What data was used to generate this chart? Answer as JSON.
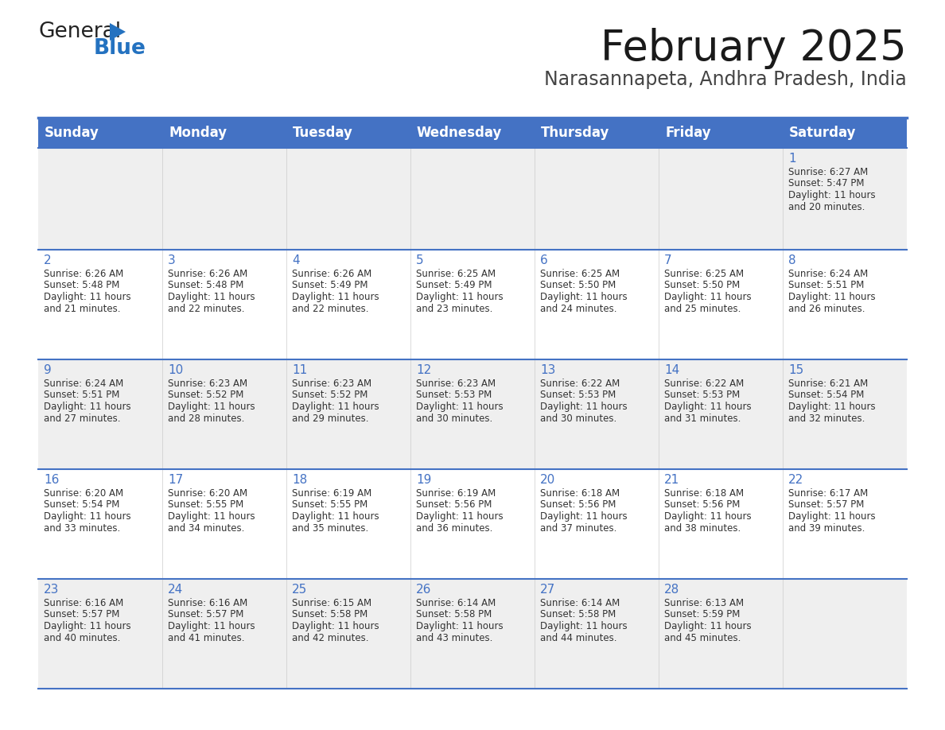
{
  "title": "February 2025",
  "subtitle": "Narasannapeta, Andhra Pradesh, India",
  "header_bg": "#4472C4",
  "header_text_color": "#FFFFFF",
  "days_of_week": [
    "Sunday",
    "Monday",
    "Tuesday",
    "Wednesday",
    "Thursday",
    "Friday",
    "Saturday"
  ],
  "cell_bg_odd": "#EFEFEF",
  "cell_bg_even": "#FFFFFF",
  "cell_text_color": "#333333",
  "day_num_color": "#4472C4",
  "border_color": "#4472C4",
  "border_color_light": "#6699CC",
  "calendar_data": [
    [
      null,
      null,
      null,
      null,
      null,
      null,
      {
        "day": 1,
        "sunrise": "6:27 AM",
        "sunset": "5:47 PM",
        "daylight": "11 hours\nand 20 minutes."
      }
    ],
    [
      {
        "day": 2,
        "sunrise": "6:26 AM",
        "sunset": "5:48 PM",
        "daylight": "11 hours\nand 21 minutes."
      },
      {
        "day": 3,
        "sunrise": "6:26 AM",
        "sunset": "5:48 PM",
        "daylight": "11 hours\nand 22 minutes."
      },
      {
        "day": 4,
        "sunrise": "6:26 AM",
        "sunset": "5:49 PM",
        "daylight": "11 hours\nand 22 minutes."
      },
      {
        "day": 5,
        "sunrise": "6:25 AM",
        "sunset": "5:49 PM",
        "daylight": "11 hours\nand 23 minutes."
      },
      {
        "day": 6,
        "sunrise": "6:25 AM",
        "sunset": "5:50 PM",
        "daylight": "11 hours\nand 24 minutes."
      },
      {
        "day": 7,
        "sunrise": "6:25 AM",
        "sunset": "5:50 PM",
        "daylight": "11 hours\nand 25 minutes."
      },
      {
        "day": 8,
        "sunrise": "6:24 AM",
        "sunset": "5:51 PM",
        "daylight": "11 hours\nand 26 minutes."
      }
    ],
    [
      {
        "day": 9,
        "sunrise": "6:24 AM",
        "sunset": "5:51 PM",
        "daylight": "11 hours\nand 27 minutes."
      },
      {
        "day": 10,
        "sunrise": "6:23 AM",
        "sunset": "5:52 PM",
        "daylight": "11 hours\nand 28 minutes."
      },
      {
        "day": 11,
        "sunrise": "6:23 AM",
        "sunset": "5:52 PM",
        "daylight": "11 hours\nand 29 minutes."
      },
      {
        "day": 12,
        "sunrise": "6:23 AM",
        "sunset": "5:53 PM",
        "daylight": "11 hours\nand 30 minutes."
      },
      {
        "day": 13,
        "sunrise": "6:22 AM",
        "sunset": "5:53 PM",
        "daylight": "11 hours\nand 30 minutes."
      },
      {
        "day": 14,
        "sunrise": "6:22 AM",
        "sunset": "5:53 PM",
        "daylight": "11 hours\nand 31 minutes."
      },
      {
        "day": 15,
        "sunrise": "6:21 AM",
        "sunset": "5:54 PM",
        "daylight": "11 hours\nand 32 minutes."
      }
    ],
    [
      {
        "day": 16,
        "sunrise": "6:20 AM",
        "sunset": "5:54 PM",
        "daylight": "11 hours\nand 33 minutes."
      },
      {
        "day": 17,
        "sunrise": "6:20 AM",
        "sunset": "5:55 PM",
        "daylight": "11 hours\nand 34 minutes."
      },
      {
        "day": 18,
        "sunrise": "6:19 AM",
        "sunset": "5:55 PM",
        "daylight": "11 hours\nand 35 minutes."
      },
      {
        "day": 19,
        "sunrise": "6:19 AM",
        "sunset": "5:56 PM",
        "daylight": "11 hours\nand 36 minutes."
      },
      {
        "day": 20,
        "sunrise": "6:18 AM",
        "sunset": "5:56 PM",
        "daylight": "11 hours\nand 37 minutes."
      },
      {
        "day": 21,
        "sunrise": "6:18 AM",
        "sunset": "5:56 PM",
        "daylight": "11 hours\nand 38 minutes."
      },
      {
        "day": 22,
        "sunrise": "6:17 AM",
        "sunset": "5:57 PM",
        "daylight": "11 hours\nand 39 minutes."
      }
    ],
    [
      {
        "day": 23,
        "sunrise": "6:16 AM",
        "sunset": "5:57 PM",
        "daylight": "11 hours\nand 40 minutes."
      },
      {
        "day": 24,
        "sunrise": "6:16 AM",
        "sunset": "5:57 PM",
        "daylight": "11 hours\nand 41 minutes."
      },
      {
        "day": 25,
        "sunrise": "6:15 AM",
        "sunset": "5:58 PM",
        "daylight": "11 hours\nand 42 minutes."
      },
      {
        "day": 26,
        "sunrise": "6:14 AM",
        "sunset": "5:58 PM",
        "daylight": "11 hours\nand 43 minutes."
      },
      {
        "day": 27,
        "sunrise": "6:14 AM",
        "sunset": "5:58 PM",
        "daylight": "11 hours\nand 44 minutes."
      },
      {
        "day": 28,
        "sunrise": "6:13 AM",
        "sunset": "5:59 PM",
        "daylight": "11 hours\nand 45 minutes."
      },
      null
    ]
  ]
}
